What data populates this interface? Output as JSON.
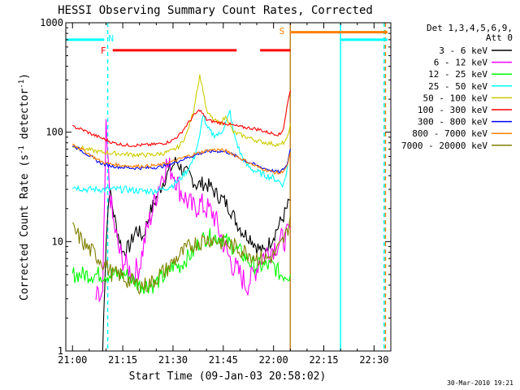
{
  "chart_data": {
    "type": "line",
    "title": "HESSI Observing Summary Count Rates, Corrected",
    "xlabel": "Start Time (09-Jan-03 20:58:02)",
    "ylabel_main": "Corrected Count Rate (s",
    "ylabel_sup1": "-1",
    "ylabel_mid": " detector",
    "ylabel_sup2": "-1",
    "ylabel_end": ")",
    "x_unit": "minutes after 21:00 UT",
    "xlim": [
      -2,
      95
    ],
    "ylim": [
      1,
      1000
    ],
    "y_scale": "log",
    "x_ticks": [
      {
        "v": 0,
        "label": "21:00"
      },
      {
        "v": 15,
        "label": "21:15"
      },
      {
        "v": 30,
        "label": "21:30"
      },
      {
        "v": 45,
        "label": "21:45"
      },
      {
        "v": 60,
        "label": "22:00"
      },
      {
        "v": 75,
        "label": "22:15"
      },
      {
        "v": 90,
        "label": "22:30"
      }
    ],
    "y_ticks": [
      {
        "v": 1,
        "label": "1"
      },
      {
        "v": 10,
        "label": "10"
      },
      {
        "v": 100,
        "label": "100"
      },
      {
        "v": 1000,
        "label": "1000"
      }
    ],
    "legend_header": [
      "Det 1,3,4,5,6,9,",
      "Att 0"
    ],
    "legend_position": "right",
    "series": [
      {
        "name": "3 - 6 keV",
        "color": "#000000",
        "points": [
          [
            9,
            1
          ],
          [
            10,
            10
          ],
          [
            11,
            30
          ],
          [
            13,
            14
          ],
          [
            15,
            8
          ],
          [
            17,
            9
          ],
          [
            19,
            13
          ],
          [
            21,
            11
          ],
          [
            23,
            18
          ],
          [
            25,
            25
          ],
          [
            27,
            35
          ],
          [
            29,
            45
          ],
          [
            31,
            55
          ],
          [
            33,
            44
          ],
          [
            35,
            40
          ],
          [
            37,
            33
          ],
          [
            39,
            34
          ],
          [
            41,
            32
          ],
          [
            43,
            27
          ],
          [
            45,
            24
          ],
          [
            47,
            20
          ],
          [
            49,
            15
          ],
          [
            51,
            12
          ],
          [
            53,
            11
          ],
          [
            55,
            9
          ],
          [
            57,
            8
          ],
          [
            59,
            10
          ],
          [
            61,
            13
          ],
          [
            63,
            17
          ],
          [
            65,
            24
          ]
        ]
      },
      {
        "name": "6 - 12 keV",
        "color": "#ff00ff",
        "points": [
          [
            7,
            3
          ],
          [
            9,
            3
          ],
          [
            10,
            100
          ],
          [
            11,
            32
          ],
          [
            12,
            16
          ],
          [
            14,
            8
          ],
          [
            16,
            6
          ],
          [
            18,
            5
          ],
          [
            20,
            6
          ],
          [
            22,
            12
          ],
          [
            24,
            20
          ],
          [
            26,
            35
          ],
          [
            28,
            50
          ],
          [
            30,
            44
          ],
          [
            32,
            30
          ],
          [
            34,
            24
          ],
          [
            36,
            20
          ],
          [
            38,
            22
          ],
          [
            40,
            20
          ],
          [
            42,
            18
          ],
          [
            44,
            12
          ],
          [
            46,
            8
          ],
          [
            48,
            6
          ],
          [
            50,
            5
          ],
          [
            52,
            4
          ],
          [
            54,
            5
          ],
          [
            56,
            7
          ],
          [
            58,
            8
          ],
          [
            60,
            9
          ],
          [
            62,
            10
          ],
          [
            64,
            11
          ],
          [
            65,
            13
          ]
        ]
      },
      {
        "name": "12 - 25 keV",
        "color": "#00ff00",
        "points": [
          [
            0,
            5
          ],
          [
            4,
            5
          ],
          [
            8,
            5
          ],
          [
            10,
            5
          ],
          [
            12,
            5
          ],
          [
            16,
            5
          ],
          [
            20,
            4
          ],
          [
            24,
            4
          ],
          [
            28,
            5
          ],
          [
            30,
            6
          ],
          [
            32,
            6
          ],
          [
            34,
            7
          ],
          [
            36,
            8
          ],
          [
            38,
            10
          ],
          [
            40,
            11
          ],
          [
            42,
            11
          ],
          [
            44,
            11
          ],
          [
            46,
            10
          ],
          [
            48,
            9
          ],
          [
            50,
            8
          ],
          [
            52,
            7
          ],
          [
            54,
            6
          ],
          [
            56,
            6
          ],
          [
            58,
            6
          ],
          [
            60,
            6
          ],
          [
            62,
            5
          ],
          [
            64,
            5
          ],
          [
            65,
            5
          ]
        ]
      },
      {
        "name": "25 - 50 keV",
        "color": "#00ffff",
        "points": [
          [
            0,
            32
          ],
          [
            4,
            30
          ],
          [
            8,
            30
          ],
          [
            12,
            30
          ],
          [
            16,
            30
          ],
          [
            20,
            29
          ],
          [
            24,
            29
          ],
          [
            27,
            30
          ],
          [
            30,
            33
          ],
          [
            32,
            37
          ],
          [
            34,
            44
          ],
          [
            36,
            55
          ],
          [
            38,
            90
          ],
          [
            39,
            150
          ],
          [
            40,
            110
          ],
          [
            42,
            95
          ],
          [
            44,
            95
          ],
          [
            46,
            125
          ],
          [
            47,
            155
          ],
          [
            48,
            100
          ],
          [
            50,
            65
          ],
          [
            52,
            50
          ],
          [
            54,
            45
          ],
          [
            56,
            42
          ],
          [
            58,
            40
          ],
          [
            60,
            38
          ],
          [
            62,
            35
          ],
          [
            63,
            33
          ],
          [
            64,
            45
          ],
          [
            65,
            70
          ]
        ]
      },
      {
        "name": "50 - 100 keV",
        "color": "#cccc00",
        "points": [
          [
            0,
            75
          ],
          [
            4,
            70
          ],
          [
            8,
            66
          ],
          [
            12,
            64
          ],
          [
            16,
            63
          ],
          [
            20,
            62
          ],
          [
            24,
            62
          ],
          [
            27,
            64
          ],
          [
            30,
            68
          ],
          [
            32,
            75
          ],
          [
            34,
            95
          ],
          [
            36,
            150
          ],
          [
            37,
            230
          ],
          [
            38,
            330
          ],
          [
            39,
            240
          ],
          [
            40,
            155
          ],
          [
            42,
            130
          ],
          [
            44,
            120
          ],
          [
            45,
            130
          ],
          [
            46,
            140
          ],
          [
            47,
            115
          ],
          [
            48,
            100
          ],
          [
            50,
            95
          ],
          [
            52,
            90
          ],
          [
            54,
            86
          ],
          [
            56,
            82
          ],
          [
            58,
            80
          ],
          [
            60,
            78
          ],
          [
            62,
            76
          ],
          [
            64,
            85
          ],
          [
            65,
            120
          ]
        ]
      },
      {
        "name": "100 - 300 keV",
        "color": "#ff0000",
        "points": [
          [
            0,
            112
          ],
          [
            2,
            108
          ],
          [
            4,
            102
          ],
          [
            6,
            95
          ],
          [
            8,
            90
          ],
          [
            10,
            85
          ],
          [
            12,
            80
          ],
          [
            16,
            76
          ],
          [
            20,
            76
          ],
          [
            24,
            77
          ],
          [
            28,
            80
          ],
          [
            30,
            85
          ],
          [
            32,
            95
          ],
          [
            34,
            115
          ],
          [
            36,
            140
          ],
          [
            38,
            160
          ],
          [
            39,
            145
          ],
          [
            40,
            130
          ],
          [
            42,
            125
          ],
          [
            44,
            122
          ],
          [
            46,
            120
          ],
          [
            48,
            115
          ],
          [
            50,
            112
          ],
          [
            52,
            110
          ],
          [
            54,
            108
          ],
          [
            56,
            105
          ],
          [
            58,
            100
          ],
          [
            60,
            97
          ],
          [
            62,
            95
          ],
          [
            63,
            110
          ],
          [
            64,
            170
          ],
          [
            65,
            240
          ]
        ]
      },
      {
        "name": "300 - 800 keV",
        "color": "#0000ff",
        "points": [
          [
            0,
            76
          ],
          [
            2,
            70
          ],
          [
            4,
            64
          ],
          [
            6,
            58
          ],
          [
            8,
            53
          ],
          [
            10,
            50
          ],
          [
            14,
            48
          ],
          [
            18,
            47
          ],
          [
            22,
            47
          ],
          [
            26,
            48
          ],
          [
            30,
            52
          ],
          [
            34,
            58
          ],
          [
            38,
            64
          ],
          [
            40,
            66
          ],
          [
            42,
            67
          ],
          [
            44,
            67
          ],
          [
            46,
            66
          ],
          [
            48,
            62
          ],
          [
            50,
            58
          ],
          [
            52,
            54
          ],
          [
            54,
            51
          ],
          [
            56,
            48
          ],
          [
            58,
            46
          ],
          [
            60,
            44
          ],
          [
            62,
            43
          ],
          [
            64,
            50
          ],
          [
            65,
            70
          ]
        ]
      },
      {
        "name": "800 - 7000 keV",
        "color": "#ff8000",
        "points": [
          [
            0,
            78
          ],
          [
            2,
            72
          ],
          [
            4,
            66
          ],
          [
            6,
            60
          ],
          [
            8,
            55
          ],
          [
            10,
            52
          ],
          [
            14,
            50
          ],
          [
            18,
            49
          ],
          [
            22,
            49
          ],
          [
            26,
            50
          ],
          [
            30,
            54
          ],
          [
            34,
            60
          ],
          [
            38,
            65
          ],
          [
            40,
            68
          ],
          [
            42,
            69
          ],
          [
            44,
            69
          ],
          [
            46,
            67
          ],
          [
            48,
            63
          ],
          [
            50,
            58
          ],
          [
            52,
            54
          ],
          [
            54,
            50
          ],
          [
            56,
            47
          ],
          [
            58,
            45
          ],
          [
            60,
            43
          ],
          [
            62,
            42
          ],
          [
            64,
            48
          ],
          [
            65,
            65
          ]
        ]
      },
      {
        "name": "7000 - 20000 keV",
        "color": "#808000",
        "points": [
          [
            0,
            13
          ],
          [
            2,
            11
          ],
          [
            4,
            9
          ],
          [
            6,
            8
          ],
          [
            8,
            7
          ],
          [
            10,
            6
          ],
          [
            12,
            5
          ],
          [
            14,
            5
          ],
          [
            16,
            4.5
          ],
          [
            18,
            4.2
          ],
          [
            20,
            4
          ],
          [
            22,
            4
          ],
          [
            24,
            4.3
          ],
          [
            26,
            5
          ],
          [
            28,
            5.5
          ],
          [
            30,
            6.5
          ],
          [
            32,
            7.5
          ],
          [
            34,
            8.5
          ],
          [
            36,
            9.5
          ],
          [
            38,
            10
          ],
          [
            40,
            10.5
          ],
          [
            42,
            10.5
          ],
          [
            44,
            10
          ],
          [
            46,
            9.5
          ],
          [
            48,
            9
          ],
          [
            50,
            8.5
          ],
          [
            52,
            8
          ],
          [
            54,
            7.5
          ],
          [
            56,
            7
          ],
          [
            58,
            7
          ],
          [
            60,
            7.5
          ],
          [
            62,
            9
          ],
          [
            64,
            12
          ],
          [
            65,
            17
          ]
        ]
      }
    ],
    "vlines": [
      {
        "x": 10.5,
        "color": "#00ffff",
        "style": "dashed"
      },
      {
        "x": 65,
        "color": "#c08020",
        "style": "solid"
      },
      {
        "x": 80,
        "color": "#00ffff",
        "style": "solid"
      },
      {
        "x": 93,
        "color": "#00ffff",
        "style": "dashed"
      },
      {
        "x": 93.4,
        "color": "#ff8000",
        "style": "dashed"
      }
    ],
    "hbars": [
      {
        "x1": -2,
        "x2": 9.5,
        "y": 700,
        "color": "#00ffff"
      },
      {
        "x1": 12,
        "x2": 49,
        "y": 560,
        "color": "#ff0000"
      },
      {
        "x1": 56,
        "x2": 65,
        "y": 560,
        "color": "#ff0000"
      },
      {
        "x1": 65,
        "x2": 94,
        "y": 820,
        "color": "#ff8000"
      },
      {
        "x1": 80,
        "x2": 94,
        "y": 700,
        "color": "#00ffff"
      }
    ],
    "flag_labels": [
      {
        "text": "N",
        "x": 11.5,
        "y": 720,
        "color": "#00ffff"
      },
      {
        "text": "F",
        "x": 9.2,
        "y": 560,
        "color": "#ff0000"
      },
      {
        "text": "S",
        "x": 62.5,
        "y": 840,
        "color": "#ff8000"
      }
    ]
  },
  "footer": {
    "timestamp": "30-Mar-2010 19:21"
  }
}
